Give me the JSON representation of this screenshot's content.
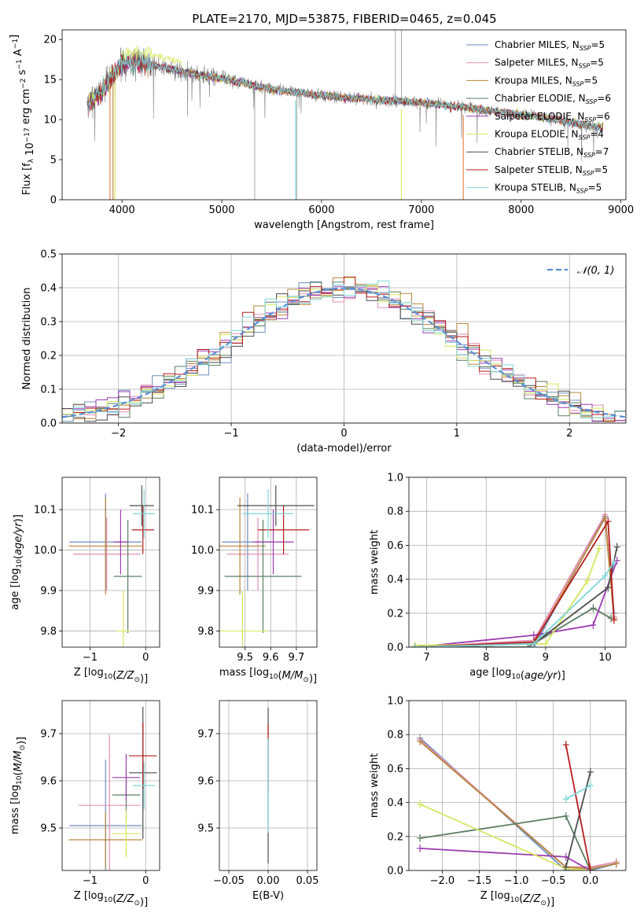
{
  "figure": {
    "title": "PLATE=2170, MJD=53875, FIBERID=0465, z=0.045"
  },
  "colors": {
    "chabrier_miles": "#6c8ebf",
    "salpeter_miles": "#e08fb0",
    "kroupa_miles": "#b8863b",
    "chabrier_elodie": "#5b7d62",
    "salpeter_elodie": "#9d3bb0",
    "kroupa_elodie": "#d7e65f",
    "chabrier_stelib": "#4d4d4d",
    "salpeter_stelib": "#b51c1c",
    "kroupa_stelib": "#7fd6da",
    "data": "#808080",
    "normal": "#5b8fd9",
    "orange": "#e07a3a"
  },
  "chart_data": [
    {
      "id": "spectrum",
      "type": "line",
      "xlabel": "wavelength [Angstrom, rest frame]",
      "ylabel": "Flux [f_λ 10^-17 erg cm^-2 s^-1 A^-1]",
      "xlim": [
        3400,
        9050
      ],
      "ylim": [
        0,
        21.2
      ],
      "xticks": [
        "4000",
        "5000",
        "6000",
        "7000",
        "8000",
        "9000"
      ],
      "yticks": [
        "0",
        "5",
        "10",
        "15",
        "20"
      ],
      "continuum": {
        "x": [
          3650,
          3700,
          3800,
          3900,
          4000,
          4100,
          4200,
          4400,
          4600,
          4800,
          5000,
          5200,
          5400,
          5600,
          5800,
          6000,
          6200,
          6400,
          6600,
          6800,
          7000,
          7200,
          7400,
          7600,
          7800,
          8000,
          8200,
          8400,
          8600,
          8800
        ],
        "y": [
          11.5,
          12.5,
          13.5,
          15.5,
          16.8,
          17.3,
          17.1,
          16.6,
          16.0,
          15.5,
          15.1,
          14.6,
          14.0,
          13.6,
          13.3,
          13.0,
          12.8,
          12.6,
          12.4,
          12.3,
          12.1,
          11.8,
          11.6,
          11.2,
          10.9,
          10.6,
          10.3,
          9.9,
          9.4,
          9.0
        ]
      },
      "legend": [
        {
          "label": "Chabrier MILES, ",
          "n": "5",
          "color": "#6c8ebf"
        },
        {
          "label": "Salpeter MILES, ",
          "n": "5",
          "color": "#e08fb0"
        },
        {
          "label": "Kroupa MILES, ",
          "n": "5",
          "color": "#b8863b"
        },
        {
          "label": "Chabrier ELODIE, ",
          "n": "6",
          "color": "#5b7d62"
        },
        {
          "label": "Salpeter ELODIE, ",
          "n": "6",
          "color": "#9d3bb0"
        },
        {
          "label": "Kroupa ELODIE, ",
          "n": "4",
          "color": "#d7e65f"
        },
        {
          "label": "Chabrier STELIB, ",
          "n": "7",
          "color": "#4d4d4d"
        },
        {
          "label": "Salpeter STELIB, ",
          "n": "5",
          "color": "#b51c1c"
        },
        {
          "label": "Kroupa STELIB, ",
          "n": "5",
          "color": "#7fd6da"
        }
      ],
      "legend_n_prefix": "N",
      "legend_n_sub": "SSP",
      "legend_placement": "upper right",
      "grid": false
    },
    {
      "id": "residuals",
      "type": "histogram",
      "xlabel": "(data-model)/error",
      "ylabel": "Normed distribution",
      "xlim": [
        -2.5,
        2.5
      ],
      "ylim": [
        0,
        0.5
      ],
      "xticks": [
        "−2",
        "−1",
        "0",
        "1",
        "2"
      ],
      "yticks": [
        "0.0",
        "0.1",
        "0.2",
        "0.3",
        "0.4",
        "0.5"
      ],
      "bin_width": 0.1,
      "legend": [
        {
          "label": "𝒩(0, 1)",
          "style": "dashed",
          "color": "#5b8fd9"
        }
      ],
      "legend_placement": "upper right",
      "grid": true
    },
    {
      "id": "age_vs_Z",
      "type": "errorbar",
      "xlabel": "Z [log10(Z/Z⊙)]",
      "ylabel": "age  [log10(age/yr)]",
      "xlim": [
        -1.5,
        0.25
      ],
      "ylim": [
        9.76,
        10.18
      ],
      "xticks": [
        "−1",
        "0"
      ],
      "yticks": [
        "9.8",
        "9.9",
        "10.0",
        "10.1"
      ],
      "grid": true,
      "points": [
        {
          "color": "#6c8ebf",
          "x": -0.72,
          "xerr": 0.65,
          "y": 10.02,
          "yerr": 0.12
        },
        {
          "color": "#e08fb0",
          "x": -0.7,
          "xerr": 0.6,
          "y": 9.99,
          "yerr": 0.09
        },
        {
          "color": "#b8863b",
          "x": -0.72,
          "xerr": 0.66,
          "y": 10.01,
          "yerr": 0.12
        },
        {
          "color": "#5b7d62",
          "x": -0.32,
          "xerr": 0.25,
          "y": 9.935,
          "yerr": 0.14
        },
        {
          "color": "#9d3bb0",
          "x": -0.45,
          "xerr": 0.13,
          "y": 10.02,
          "yerr": 0.08
        },
        {
          "color": "#d7e65f",
          "x": -0.4,
          "xerr": 0.12,
          "y": 9.8,
          "yerr": 0.1
        },
        {
          "color": "#4d4d4d",
          "x": -0.07,
          "xerr": 0.22,
          "y": 10.11,
          "yerr": 0.05
        },
        {
          "color": "#b51c1c",
          "x": -0.05,
          "xerr": 0.2,
          "y": 10.05,
          "yerr": 0.06
        },
        {
          "color": "#7fd6da",
          "x": -0.03,
          "xerr": 0.2,
          "y": 10.09,
          "yerr": 0.06
        }
      ]
    },
    {
      "id": "age_vs_mass",
      "type": "errorbar",
      "xlabel": "mass [log10(M/M⊙)]",
      "ylabel": "",
      "xlim": [
        9.4,
        9.78
      ],
      "ylim": [
        9.76,
        10.18
      ],
      "xticks": [
        "9.5",
        "9.6",
        "9.7"
      ],
      "yticks": [
        "9.8",
        "9.9",
        "10.0",
        "10.1"
      ],
      "grid": true,
      "points": [
        {
          "color": "#6c8ebf",
          "x": 9.51,
          "xerr": 0.1,
          "y": 10.02,
          "yerr": 0.12
        },
        {
          "color": "#e08fb0",
          "x": 9.55,
          "xerr": 0.12,
          "y": 9.99,
          "yerr": 0.09
        },
        {
          "color": "#b8863b",
          "x": 9.48,
          "xerr": 0.1,
          "y": 10.01,
          "yerr": 0.12
        },
        {
          "color": "#5b7d62",
          "x": 9.57,
          "xerr": 0.15,
          "y": 9.935,
          "yerr": 0.14
        },
        {
          "color": "#9d3bb0",
          "x": 9.61,
          "xerr": 0.08,
          "y": 10.02,
          "yerr": 0.08
        },
        {
          "color": "#d7e65f",
          "x": 9.49,
          "xerr": 0.1,
          "y": 9.8,
          "yerr": 0.1
        },
        {
          "color": "#4d4d4d",
          "x": 9.62,
          "xerr": 0.15,
          "y": 10.11,
          "yerr": 0.05
        },
        {
          "color": "#b51c1c",
          "x": 9.65,
          "xerr": 0.1,
          "y": 10.05,
          "yerr": 0.06
        },
        {
          "color": "#7fd6da",
          "x": 9.59,
          "xerr": 0.1,
          "y": 10.09,
          "yerr": 0.06
        }
      ]
    },
    {
      "id": "weight_vs_age",
      "type": "line",
      "xlabel": "age  [log10(age/yr)]",
      "ylabel": "mass weight",
      "xlim": [
        6.7,
        10.35
      ],
      "ylim": [
        0,
        1
      ],
      "xticks": [
        "7",
        "8",
        "9",
        "10"
      ],
      "yticks": [
        "0.0",
        "0.2",
        "0.4",
        "0.6",
        "0.8",
        "1.0"
      ],
      "grid": true,
      "series": [
        {
          "color": "#6c8ebf",
          "x": [
            6.8,
            8.8,
            10.0,
            10.15
          ],
          "y": [
            0.0,
            0.0,
            0.77,
            0.2
          ]
        },
        {
          "color": "#e08fb0",
          "x": [
            6.8,
            8.8,
            10.0,
            10.15
          ],
          "y": [
            0.0,
            0.04,
            0.78,
            0.18
          ]
        },
        {
          "color": "#b8863b",
          "x": [
            6.8,
            8.8,
            10.0,
            10.15
          ],
          "y": [
            0.0,
            0.02,
            0.76,
            0.17
          ]
        },
        {
          "color": "#5b7d62",
          "x": [
            6.8,
            8.7,
            9.8,
            10.1
          ],
          "y": [
            0.0,
            0.0,
            0.23,
            0.17
          ]
        },
        {
          "color": "#9d3bb0",
          "x": [
            6.8,
            8.8,
            9.8,
            10.2
          ],
          "y": [
            0.0,
            0.07,
            0.13,
            0.51
          ]
        },
        {
          "color": "#d7e65f",
          "x": [
            6.8,
            9.0,
            9.7,
            9.9
          ],
          "y": [
            0.01,
            0.02,
            0.39,
            0.58
          ]
        },
        {
          "color": "#4d4d4d",
          "x": [
            6.8,
            8.8,
            10.05,
            10.2
          ],
          "y": [
            0.0,
            0.02,
            0.35,
            0.59
          ]
        },
        {
          "color": "#b51c1c",
          "x": [
            6.8,
            8.8,
            10.05,
            10.15
          ],
          "y": [
            0.0,
            0.03,
            0.74,
            0.16
          ]
        },
        {
          "color": "#7fd6da",
          "x": [
            6.8,
            8.8,
            10.0,
            10.15
          ],
          "y": [
            0.0,
            0.02,
            0.42,
            0.5
          ]
        }
      ]
    },
    {
      "id": "mass_vs_Z",
      "type": "errorbar",
      "xlabel": "Z [log10(Z/Z⊙)]",
      "ylabel": "mass [log10(M/M⊙)]",
      "xlim": [
        -1.5,
        0.25
      ],
      "ylim": [
        9.41,
        9.77
      ],
      "xticks": [
        "−1",
        "0"
      ],
      "yticks": [
        "9.5",
        "9.6",
        "9.7"
      ],
      "grid": true,
      "points": [
        {
          "color": "#6c8ebf",
          "x": -0.72,
          "xerr": 0.65,
          "y": 9.505,
          "yerr": 0.14
        },
        {
          "color": "#e08fb0",
          "x": -0.65,
          "xerr": 0.55,
          "y": 9.548,
          "yerr": 0.15
        },
        {
          "color": "#b8863b",
          "x": -0.72,
          "xerr": 0.66,
          "y": 9.475,
          "yerr": 0.06
        },
        {
          "color": "#5b7d62",
          "x": -0.35,
          "xerr": 0.25,
          "y": 9.57,
          "yerr": 0.05
        },
        {
          "color": "#9d3bb0",
          "x": -0.35,
          "xerr": 0.25,
          "y": 9.607,
          "yerr": 0.05
        },
        {
          "color": "#d7e65f",
          "x": -0.35,
          "xerr": 0.25,
          "y": 9.488,
          "yerr": 0.05
        },
        {
          "color": "#4d4d4d",
          "x": -0.05,
          "xerr": 0.25,
          "y": 9.617,
          "yerr": 0.14
        },
        {
          "color": "#b51c1c",
          "x": -0.05,
          "xerr": 0.25,
          "y": 9.653,
          "yerr": 0.07
        },
        {
          "color": "#7fd6da",
          "x": -0.03,
          "xerr": 0.2,
          "y": 9.59,
          "yerr": 0.05
        }
      ]
    },
    {
      "id": "mass_vs_ebv",
      "type": "errorbar",
      "xlabel": "E(B-V)",
      "ylabel": "",
      "xlim": [
        -0.062,
        0.062
      ],
      "ylim": [
        9.41,
        9.77
      ],
      "xticks": [
        "−0.05",
        "0.00",
        "0.05"
      ],
      "yticks": [
        "9.5",
        "9.6",
        "9.7"
      ],
      "grid": true,
      "points": [
        {
          "color": "#4d4d4d",
          "x": 0.0,
          "xerr": 0,
          "y": 9.59,
          "yerr": 0.165
        },
        {
          "color": "#b51c1c",
          "x": 0.0,
          "xerr": 0,
          "y": 9.65,
          "yerr": 0.07
        },
        {
          "color": "#7fd6da",
          "x": 0.0,
          "xerr": 0,
          "y": 9.59,
          "yerr": 0.1
        }
      ]
    },
    {
      "id": "weight_vs_Z",
      "type": "line",
      "xlabel": "Z [log10(Z/Z⊙)]",
      "ylabel": "mass weight",
      "xlim": [
        -2.45,
        0.48
      ],
      "ylim": [
        0,
        1
      ],
      "xticks": [
        "−2.0",
        "−1.5",
        "−1.0",
        "−0.5",
        "0.0"
      ],
      "yticks": [
        "0.0",
        "0.2",
        "0.4",
        "0.6",
        "0.8",
        "1.0"
      ],
      "grid": true,
      "series": [
        {
          "color": "#6c8ebf",
          "x": [
            -2.3,
            -0.33,
            0.0,
            0.35
          ],
          "y": [
            0.78,
            0.0,
            0.0,
            0.04
          ]
        },
        {
          "color": "#e08fb0",
          "x": [
            -2.3,
            -0.33,
            0.0,
            0.35
          ],
          "y": [
            0.77,
            0.02,
            0.02,
            0.05
          ]
        },
        {
          "color": "#b8863b",
          "x": [
            -2.3,
            -0.33,
            0.0,
            0.35
          ],
          "y": [
            0.76,
            0.02,
            0.01,
            0.04
          ]
        },
        {
          "color": "#5b7d62",
          "x": [
            -2.3,
            -0.33,
            0.0
          ],
          "y": [
            0.19,
            0.32,
            0.0
          ]
        },
        {
          "color": "#9d3bb0",
          "x": [
            -2.3,
            -0.33,
            0.0
          ],
          "y": [
            0.13,
            0.08,
            0.0
          ]
        },
        {
          "color": "#d7e65f",
          "x": [
            -2.3,
            -0.33,
            0.0
          ],
          "y": [
            0.39,
            0.01,
            0.0
          ]
        },
        {
          "color": "#4d4d4d",
          "x": [
            -0.33,
            0.0
          ],
          "y": [
            0.02,
            0.58
          ]
        },
        {
          "color": "#b51c1c",
          "x": [
            -0.33,
            0.0
          ],
          "y": [
            0.74,
            0.0
          ]
        },
        {
          "color": "#7fd6da",
          "x": [
            -0.33,
            0.0
          ],
          "y": [
            0.42,
            0.5
          ]
        }
      ]
    }
  ]
}
